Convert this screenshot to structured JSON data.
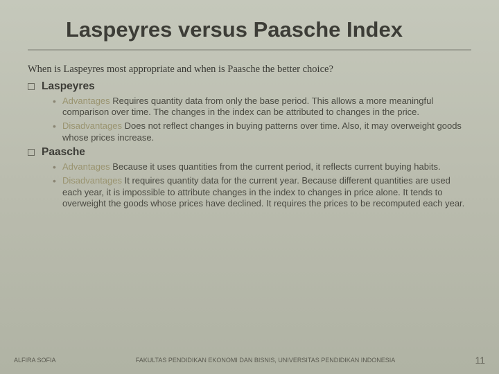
{
  "title": "Laspeyres versus Paasche Index",
  "intro": "When is Laspeyres most appropriate and when is Paasche the better choice?",
  "sections": {
    "laspeyres": {
      "name": "Laspeyres",
      "adv_label": "Advantages",
      "adv_text": " Requires quantity data from only the base period. This allows a more meaningful comparison over time. The changes in the index can be attributed to changes in the price.",
      "dis_label": "Disadvantages",
      "dis_text": " Does not reflect changes in buying patterns over time. Also, it may overweight goods whose prices increase."
    },
    "paasche": {
      "name": "Paasche",
      "adv_label": "Advantages",
      "adv_text": " Because it uses quantities from the current period, it reflects current buying habits.",
      "dis_label": "Disadvantages",
      "dis_text": " It requires quantity data for the current year. Because different quantities are used each year, it is impossible to attribute changes in the index to changes in price alone. It tends to overweight the goods whose prices have declined. It requires the prices to be recomputed each year."
    }
  },
  "footer": {
    "left": "ALFIRA SOFIA",
    "center": "FAKULTAS PENDIDIKAN EKONOMI DAN BISNIS, UNIVERSITAS PENDIDIKAN INDONESIA",
    "page": "11"
  },
  "colors": {
    "accent_label": "#9a9470",
    "text": "#4a4a42"
  }
}
